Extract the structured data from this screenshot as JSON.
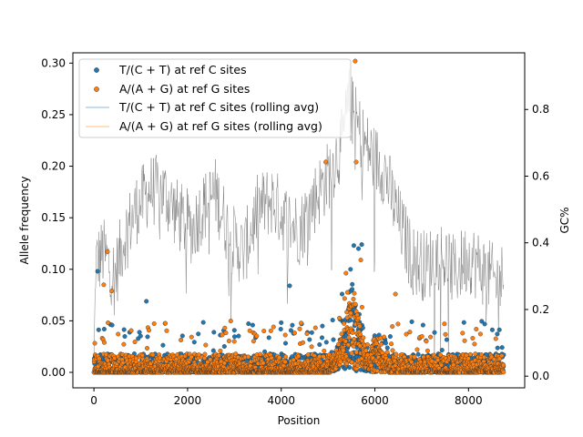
{
  "chart_data": {
    "type": "scatter",
    "xlabel": "Position",
    "ylabel": "Allele frequency",
    "y2label": "GC%",
    "xlim": [
      -450,
      9200
    ],
    "ylim": [
      -0.015,
      0.31
    ],
    "y2lim": [
      -0.035,
      0.97
    ],
    "x_ticks": [
      0,
      2000,
      4000,
      6000,
      8000
    ],
    "y_ticks": [
      0.0,
      0.05,
      0.1,
      0.15,
      0.2,
      0.25,
      0.3
    ],
    "y2_ticks": [
      0.0,
      0.2,
      0.4,
      0.6,
      0.8
    ],
    "x_tick_labels": [
      "0",
      "2000",
      "4000",
      "6000",
      "8000"
    ],
    "y_tick_labels": [
      "0.00",
      "0.05",
      "0.10",
      "0.15",
      "0.20",
      "0.25",
      "0.30"
    ],
    "y2_tick_labels": [
      "0.0",
      "0.2",
      "0.4",
      "0.6",
      "0.8"
    ],
    "legend_location": "upper left",
    "legend_entries": [
      "T/(C + T) at ref C sites",
      "A/(A + G) at ref G sites",
      "T/(C + T) at ref C sites (rolling avg)",
      "A/(A + G) at ref G sites (rolling avg)"
    ],
    "series": [
      {
        "name": "T/(C + T) at ref C sites",
        "kind": "scatter",
        "color": "#1f77b4",
        "description": "dense points along 0–8800, mostly 0–0.02; peak near 5300–5800 up to ~0.125",
        "notable_points": [
          {
            "x": 80,
            "y": 0.098
          },
          {
            "x": 1120,
            "y": 0.069
          },
          {
            "x": 4180,
            "y": 0.084
          },
          {
            "x": 5550,
            "y": 0.123
          },
          {
            "x": 5650,
            "y": 0.12
          },
          {
            "x": 5720,
            "y": 0.124
          },
          {
            "x": 5480,
            "y": 0.1
          },
          {
            "x": 5300,
            "y": 0.076
          }
        ]
      },
      {
        "name": "A/(A + G) at ref G sites",
        "kind": "scatter",
        "color": "#ff7f0e",
        "description": "dense points along 0–8800, mostly 0–0.02; peak near 5300–5800, extreme ~0.30",
        "notable_points": [
          {
            "x": 210,
            "y": 0.085
          },
          {
            "x": 290,
            "y": 0.117
          },
          {
            "x": 380,
            "y": 0.079
          },
          {
            "x": 4950,
            "y": 0.204
          },
          {
            "x": 5580,
            "y": 0.302
          },
          {
            "x": 5600,
            "y": 0.204
          },
          {
            "x": 5700,
            "y": 0.109
          },
          {
            "x": 6440,
            "y": 0.076
          }
        ]
      },
      {
        "name": "T/(C + T) at ref C sites (rolling avg)",
        "kind": "line",
        "color": "#1f77b4",
        "line_width": 0.4
      },
      {
        "name": "A/(A + G) at ref G sites (rolling avg)",
        "kind": "line",
        "color": "#ff7f0e",
        "line_width": 0.4
      },
      {
        "name": "GC%",
        "kind": "line",
        "axis": "right",
        "color": "#808080",
        "description": "GC content along position, ~0.25–0.85",
        "points": [
          {
            "x": 0,
            "y": 0.33
          },
          {
            "x": 200,
            "y": 0.37
          },
          {
            "x": 450,
            "y": 0.3
          },
          {
            "x": 650,
            "y": 0.42
          },
          {
            "x": 900,
            "y": 0.5
          },
          {
            "x": 1200,
            "y": 0.56
          },
          {
            "x": 1500,
            "y": 0.55
          },
          {
            "x": 1800,
            "y": 0.48
          },
          {
            "x": 2100,
            "y": 0.44
          },
          {
            "x": 2300,
            "y": 0.5
          },
          {
            "x": 2600,
            "y": 0.55
          },
          {
            "x": 2900,
            "y": 0.42
          },
          {
            "x": 3200,
            "y": 0.37
          },
          {
            "x": 3500,
            "y": 0.5
          },
          {
            "x": 3800,
            "y": 0.53
          },
          {
            "x": 4100,
            "y": 0.47
          },
          {
            "x": 4400,
            "y": 0.44
          },
          {
            "x": 4700,
            "y": 0.53
          },
          {
            "x": 5000,
            "y": 0.6
          },
          {
            "x": 5300,
            "y": 0.7
          },
          {
            "x": 5450,
            "y": 0.82
          },
          {
            "x": 5600,
            "y": 0.76
          },
          {
            "x": 5800,
            "y": 0.69
          },
          {
            "x": 6000,
            "y": 0.65
          },
          {
            "x": 6200,
            "y": 0.62
          },
          {
            "x": 6500,
            "y": 0.47
          },
          {
            "x": 6800,
            "y": 0.35
          },
          {
            "x": 7100,
            "y": 0.33
          },
          {
            "x": 7400,
            "y": 0.37
          },
          {
            "x": 7700,
            "y": 0.31
          },
          {
            "x": 8000,
            "y": 0.36
          },
          {
            "x": 8300,
            "y": 0.32
          },
          {
            "x": 8600,
            "y": 0.28
          },
          {
            "x": 8750,
            "y": 0.3
          }
        ]
      }
    ]
  }
}
